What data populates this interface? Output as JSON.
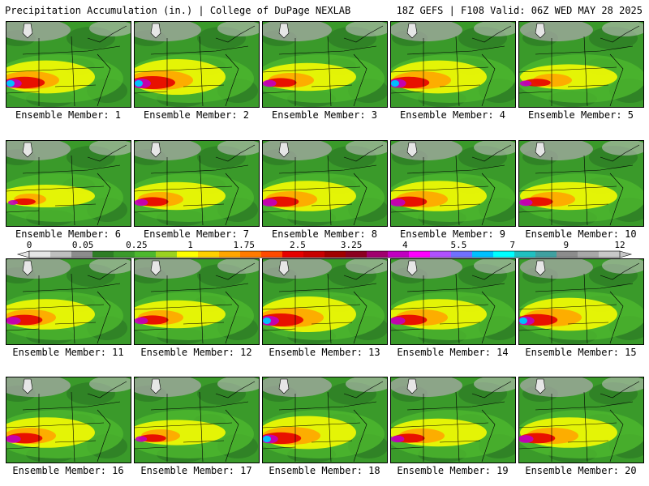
{
  "header": {
    "left": "Precipitation Accumulation (in.) | College of DuPage NEXLAB",
    "right": "18Z GEFS | F108 Valid: 06Z WED MAY 28 2025"
  },
  "colorbar": {
    "tick_labels": [
      "0",
      "0.05",
      "0.25",
      "1",
      "1.75",
      "2.5",
      "3.25",
      "4",
      "5.5",
      "7",
      "9",
      "12"
    ],
    "colors": [
      "#e6e6e6",
      "#bfbfbf",
      "#8c8c8c",
      "#2e7d25",
      "#3a9a2a",
      "#4db82e",
      "#9bd21f",
      "#ffff00",
      "#ffd000",
      "#ffa500",
      "#ff7a00",
      "#ff4a00",
      "#e60000",
      "#c80000",
      "#a00000",
      "#8b0020",
      "#a0006e",
      "#c000c0",
      "#ff00ff",
      "#b050ff",
      "#7070ff",
      "#00c0ff",
      "#00ffff",
      "#20c0c0",
      "#40a0a0",
      "#8c8c8c",
      "#a8a8a8",
      "#c8c8c8"
    ]
  },
  "panels": [
    {
      "label": "Ensemble Member: 1",
      "intensity": 0.9
    },
    {
      "label": "Ensemble Member: 2",
      "intensity": 1.0
    },
    {
      "label": "Ensemble Member: 3",
      "intensity": 0.7
    },
    {
      "label": "Ensemble Member: 4",
      "intensity": 0.9
    },
    {
      "label": "Ensemble Member: 5",
      "intensity": 0.6
    },
    {
      "label": "Ensemble Member: 6",
      "intensity": 0.5
    },
    {
      "label": "Ensemble Member: 7",
      "intensity": 0.7
    },
    {
      "label": "Ensemble Member: 8",
      "intensity": 0.8
    },
    {
      "label": "Ensemble Member: 9",
      "intensity": 0.8
    },
    {
      "label": "Ensemble Member: 10",
      "intensity": 0.7
    },
    {
      "label": "Ensemble Member: 11",
      "intensity": 0.8
    },
    {
      "label": "Ensemble Member: 12",
      "intensity": 0.7
    },
    {
      "label": "Ensemble Member: 13",
      "intensity": 1.0
    },
    {
      "label": "Ensemble Member: 14",
      "intensity": 0.8
    },
    {
      "label": "Ensemble Member: 15",
      "intensity": 0.9
    },
    {
      "label": "Ensemble Member: 16",
      "intensity": 0.8
    },
    {
      "label": "Ensemble Member: 17",
      "intensity": 0.6
    },
    {
      "label": "Ensemble Member: 18",
      "intensity": 0.9
    },
    {
      "label": "Ensemble Member: 19",
      "intensity": 0.7
    },
    {
      "label": "Ensemble Member: 20",
      "intensity": 0.8
    }
  ]
}
